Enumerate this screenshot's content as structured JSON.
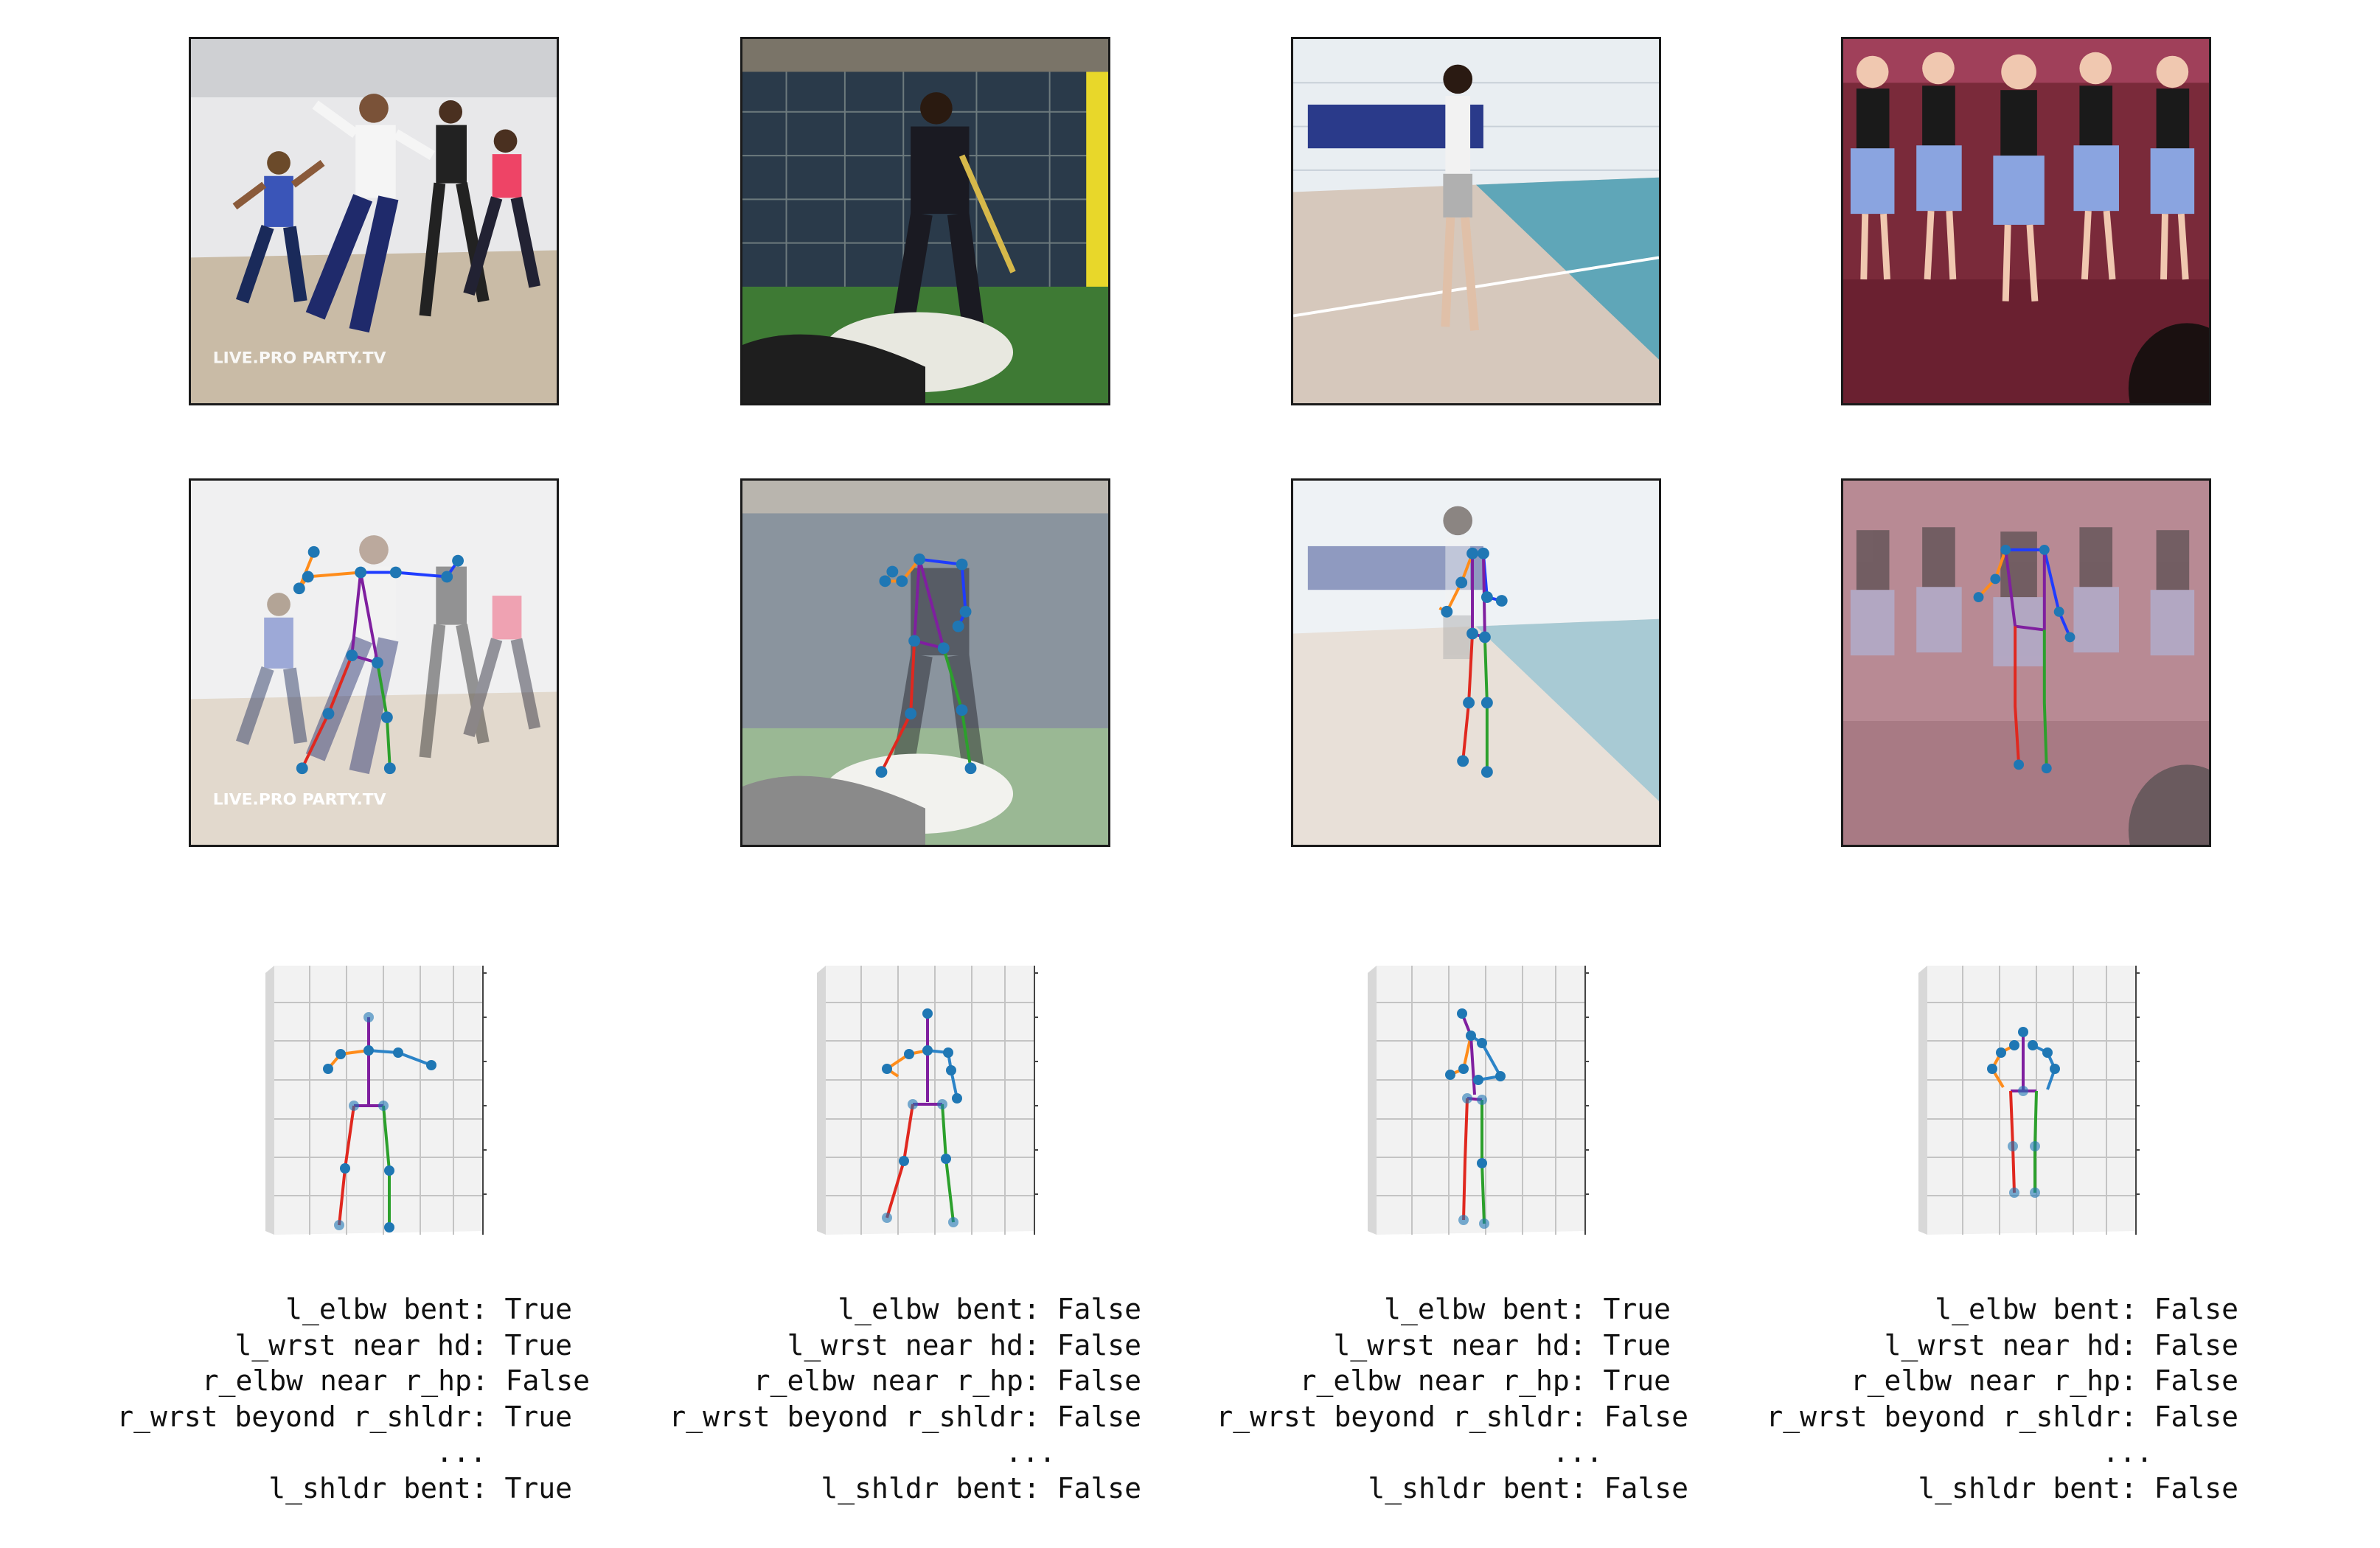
{
  "figure": {
    "photos": [
      {
        "scene": "group dance studio with four dancers",
        "watermark": "LIVE.PRO PARTY.TV"
      },
      {
        "scene": "baseball batting cage, player in dark clothes"
      },
      {
        "scene": "woman standing on indoor court"
      },
      {
        "scene": "girls in blue skirts dancing on stage"
      }
    ],
    "overlays": [
      {
        "scene": "dance studio with 2D skeleton overlay",
        "watermark": "LIVE.PRO PARTY.TV"
      },
      {
        "scene": "batting cage with 2D skeleton overlay"
      },
      {
        "scene": "indoor court with 2D skeleton overlay"
      },
      {
        "scene": "stage dance with 2D skeleton overlay"
      }
    ],
    "skeleton_colors": {
      "left_arm": "#ff8c1a",
      "right_arm": "#1f3cff",
      "right_arm_3d": "#2b83c7",
      "torso": "#7f1f9f",
      "left_leg": "#e0281f",
      "right_leg": "#2ca02c",
      "joint": "#1f77b4"
    },
    "captions": [
      {
        "lines": [
          "l_elbw bent: True",
          "l_wrst near hd: True",
          "r_elbw near r_hp: False",
          "r_wrst beyond r_shldr: True",
          "...",
          "l_shldr bent: True"
        ]
      },
      {
        "lines": [
          "l_elbw bent: False",
          "l_wrst near hd: False",
          "r_elbw near r_hp: False",
          "r_wrst beyond r_shldr: False",
          "...",
          "l_shldr bent: False"
        ]
      },
      {
        "lines": [
          "l_elbw bent: True",
          "l_wrst near hd: True",
          "r_elbw near r_hp: True",
          "r_wrst beyond r_shldr: False",
          "...",
          "l_shldr bent: False"
        ]
      },
      {
        "lines": [
          "l_elbw bent: False",
          "l_wrst near hd: False",
          "r_elbw near r_hp: False",
          "r_wrst beyond r_shldr: False",
          "...",
          "l_shldr bent: False"
        ]
      }
    ]
  }
}
